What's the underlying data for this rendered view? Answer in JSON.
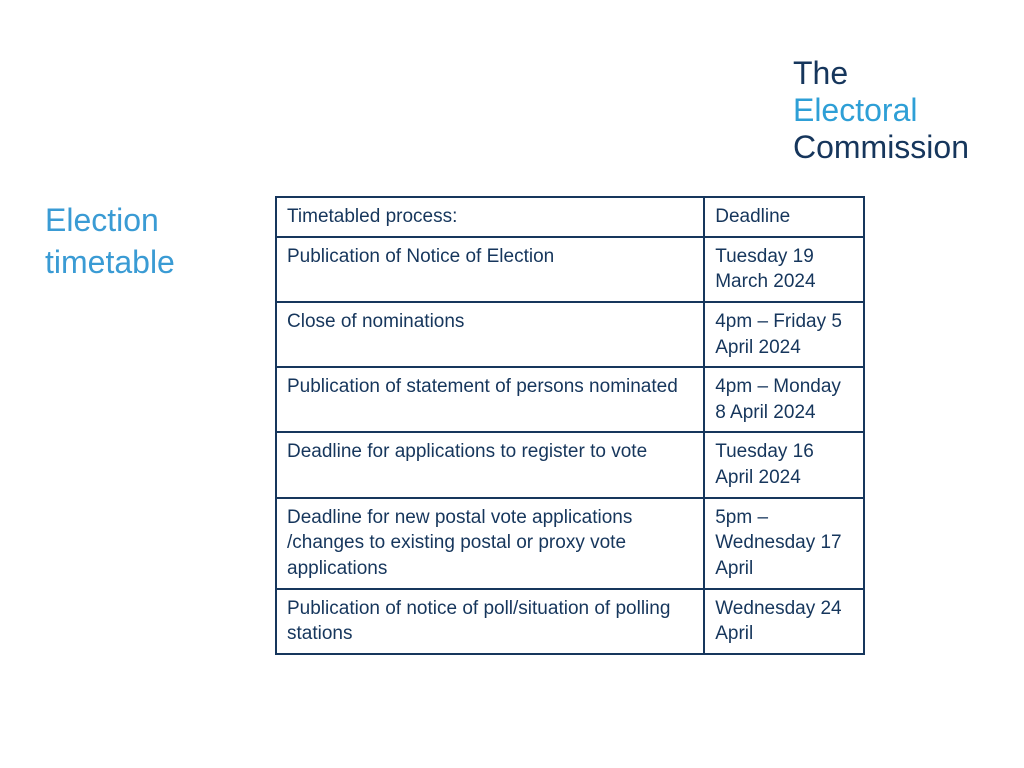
{
  "colors": {
    "dark_navy": "#16365c",
    "bright_blue": "#2e9fd6",
    "table_border": "#16365c",
    "table_text": "#16365c",
    "title_blue": "#3a9bd4"
  },
  "logo": {
    "line1": "The",
    "line2": "Electoral",
    "line3": "Commission"
  },
  "title": "Election timetable",
  "table": {
    "header": {
      "process": "Timetabled process:",
      "deadline": "Deadline"
    },
    "rows": [
      {
        "process": "Publication of Notice of Election",
        "deadline": "Tuesday 19 March 2024"
      },
      {
        "process": "Close of nominations",
        "deadline": "4pm – Friday 5 April 2024"
      },
      {
        "process": "Publication of statement of persons nominated",
        "deadline": "4pm – Monday 8 April 2024"
      },
      {
        "process": "Deadline for applications to register to vote",
        "deadline": "Tuesday 16 April 2024"
      },
      {
        "process": "Deadline for new postal vote applications /changes to existing postal or proxy vote applications",
        "deadline": "5pm – Wednesday 17 April"
      },
      {
        "process": "Publication of notice of poll/situation of polling stations",
        "deadline": "Wednesday 24 April"
      }
    ]
  }
}
